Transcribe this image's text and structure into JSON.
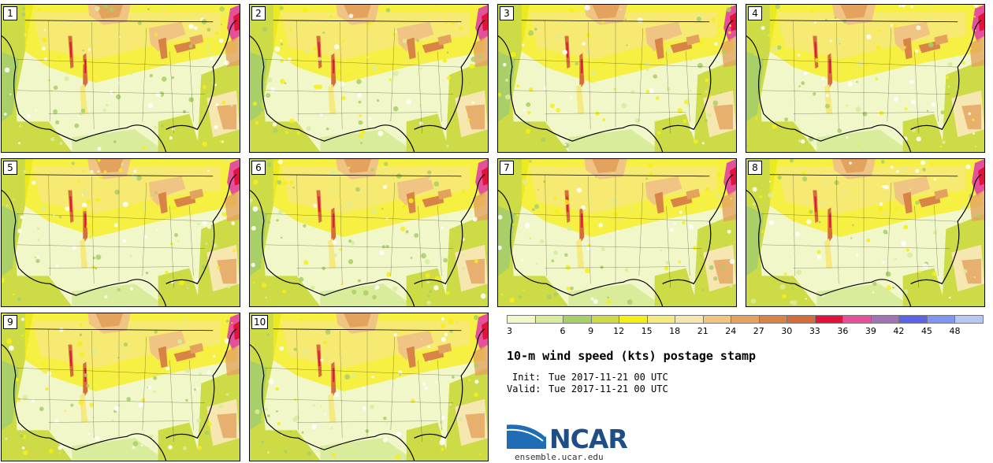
{
  "panels": [
    {
      "label": "1"
    },
    {
      "label": "2"
    },
    {
      "label": "3"
    },
    {
      "label": "4"
    },
    {
      "label": "5"
    },
    {
      "label": "6"
    },
    {
      "label": "7"
    },
    {
      "label": "8"
    },
    {
      "label": "9"
    },
    {
      "label": "10"
    }
  ],
  "legend": {
    "ticks": [
      "3",
      "6",
      "9",
      "12",
      "15",
      "18",
      "21",
      "24",
      "27",
      "30",
      "33",
      "36",
      "39",
      "42",
      "45",
      "48"
    ],
    "colors": [
      "#f1f7c8",
      "#d9ec9c",
      "#a9cf69",
      "#cddc46",
      "#f6ee16",
      "#f6e980",
      "#f6e7b0",
      "#f0c583",
      "#e3a25e",
      "#d98447",
      "#d56d3a",
      "#e2123a",
      "#e4509a",
      "#a075b4",
      "#5e63e6",
      "#7f95f0",
      "#b8c8f4"
    ]
  },
  "title": "10-m wind speed (kts) postage stamp",
  "init_label": "Init:",
  "init_value": "Tue 2017-11-21 00 UTC",
  "valid_label": "Valid:",
  "valid_value": "Tue 2017-11-21 00 UTC",
  "logo": {
    "name": "NCAR",
    "url": "ensemble.ucar.edu"
  }
}
